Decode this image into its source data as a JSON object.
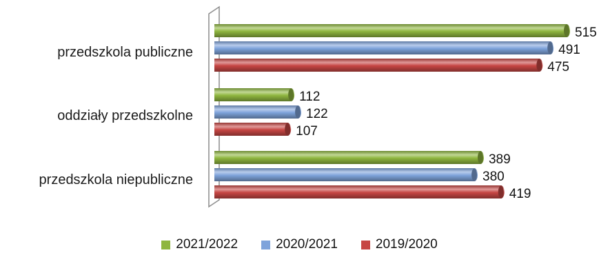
{
  "chart_data": {
    "type": "bar",
    "orientation": "horizontal",
    "categories": [
      "przedszkola publiczne",
      "oddziały przedszkolne",
      "przedszkola niepubliczne"
    ],
    "series": [
      {
        "name": "2021/2022",
        "color": "#8fb63f",
        "values": [
          515,
          112,
          389
        ]
      },
      {
        "name": "2020/2021",
        "color": "#7ea3db",
        "values": [
          491,
          122,
          380
        ]
      },
      {
        "name": "2019/2020",
        "color": "#c64643",
        "values": [
          475,
          107,
          419
        ]
      }
    ],
    "xlim": [
      0,
      550
    ],
    "grid": false,
    "legend_position": "bottom",
    "style": "3d-cylinder"
  }
}
